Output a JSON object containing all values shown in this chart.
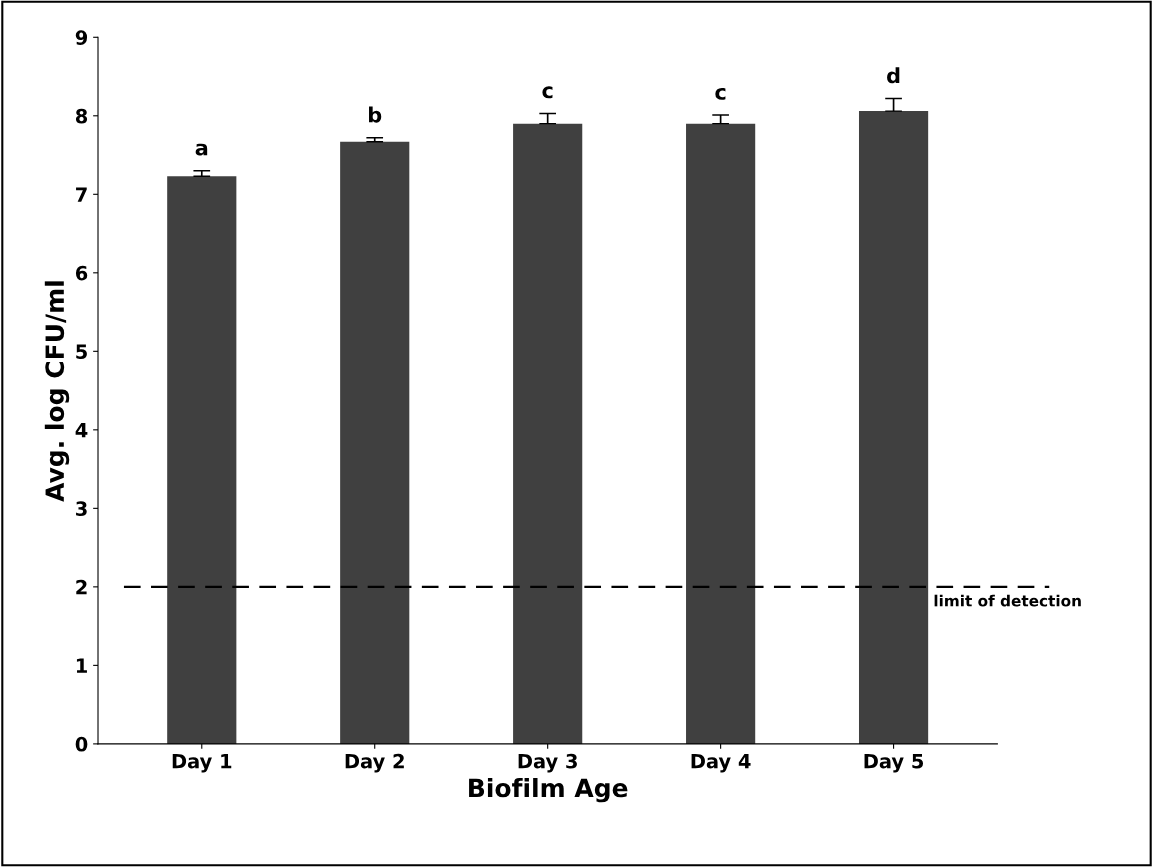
{
  "chart_data": {
    "type": "bar",
    "xlabel": "Biofilm Age",
    "ylabel": "Avg. log CFU/ml",
    "categories": [
      "Day 1",
      "Day 2",
      "Day 3",
      "Day 4",
      "Day 5"
    ],
    "values": [
      7.23,
      7.67,
      7.9,
      7.9,
      8.06
    ],
    "color": "#404040",
    "errors": [
      [
        7.23,
        7.3
      ],
      [
        7.67,
        7.72
      ],
      [
        7.9,
        8.03
      ],
      [
        7.9,
        8.01
      ],
      [
        8.06,
        8.22
      ]
    ],
    "ylim": [
      0,
      9
    ],
    "yticks": [
      0,
      1,
      2,
      3,
      4,
      5,
      6,
      7,
      8,
      9
    ],
    "grid": false,
    "ref_lines": [
      {
        "axis": "y",
        "value": 2,
        "label": "limit of detection",
        "color": "#000000",
        "line_style": "dashed"
      }
    ],
    "annotations": [
      {
        "text": "a",
        "x": "Day 1",
        "y": 7.3
      },
      {
        "text": "b",
        "x": "Day 2",
        "y": 7.72
      },
      {
        "text": "c",
        "x": "Day 3",
        "y": 8.03
      },
      {
        "text": "c",
        "x": "Day 4",
        "y": 8.01
      },
      {
        "text": "d",
        "x": "Day 5",
        "y": 8.22
      }
    ]
  }
}
